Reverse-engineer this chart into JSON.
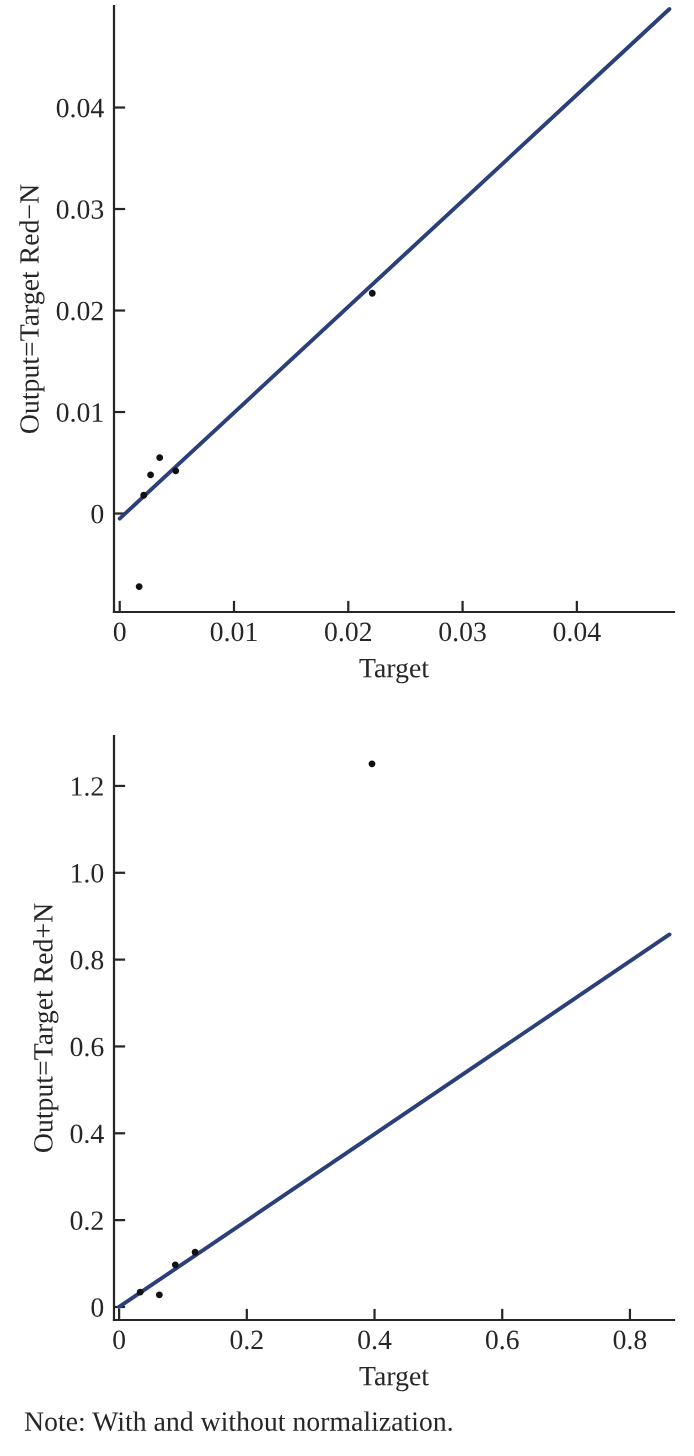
{
  "chart_data": [
    {
      "type": "scatter",
      "xlabel": "Target",
      "ylabel": "Output=Target Red−N",
      "xlim": [
        -0.0005,
        0.0485
      ],
      "ylim": [
        -0.0097,
        0.05
      ],
      "xticks": [
        0,
        0.01,
        0.02,
        0.03,
        0.04
      ],
      "yticks": [
        0,
        0.01,
        0.02,
        0.03,
        0.04
      ],
      "grid": false,
      "series": [
        {
          "marker": "circle",
          "color": "#111111",
          "x": [
            0.0017,
            0.0021,
            0.0027,
            0.0035,
            0.0049,
            0.0221
          ],
          "values": [
            -0.0072,
            0.0018,
            0.0038,
            0.0055,
            0.0042,
            0.0217
          ]
        },
        {
          "type": "line",
          "color": "#2b3f7a",
          "x": [
            0,
            0.0481
          ],
          "values": [
            -0.0005,
            0.0497
          ]
        }
      ]
    },
    {
      "type": "scatter",
      "xlabel": "Target",
      "ylabel": "Output=Target Red+N",
      "xlim": [
        -0.008,
        0.869
      ],
      "ylim": [
        -0.03,
        1.315
      ],
      "xticks": [
        0,
        0.2,
        0.4,
        0.6,
        0.8
      ],
      "yticks": [
        0,
        0.2,
        0.4,
        0.6,
        0.8,
        {
          "value": 1.0,
          "label": "1.0"
        },
        1.2
      ],
      "grid": false,
      "annotations": [
        "Note: With and without normalization."
      ],
      "series": [
        {
          "marker": "circle",
          "color": "#111111",
          "x": [
            0.033,
            0.063,
            0.088,
            0.119,
            0.396
          ],
          "values": [
            0.034,
            0.028,
            0.097,
            0.126,
            1.251
          ]
        },
        {
          "type": "line",
          "color": "#2b3f7a",
          "x": [
            0,
            0.862
          ],
          "values": [
            0,
            0.858
          ]
        }
      ]
    }
  ]
}
